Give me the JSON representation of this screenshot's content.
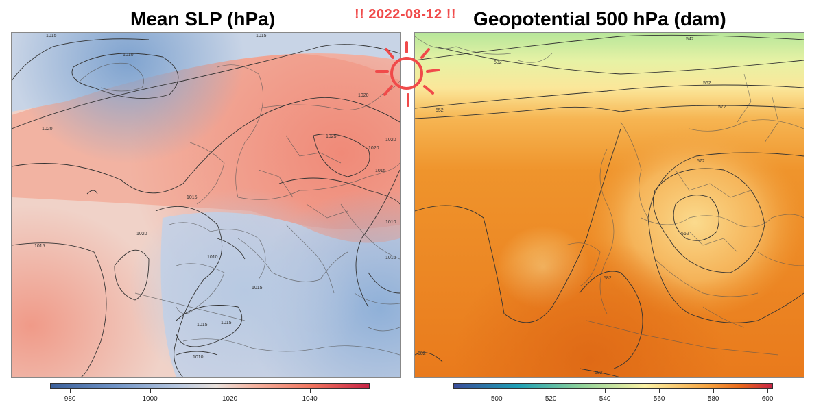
{
  "date_badge": "!! 2022-08-12 !!",
  "left_map": {
    "title": "Mean SLP (hPa)",
    "contour_labels": [
      "1015",
      "1010",
      "1015",
      "1020",
      "1020",
      "1025",
      "1020",
      "1015",
      "1015",
      "1020",
      "1015",
      "1010",
      "1010",
      "1015",
      "1015",
      "1010",
      "1020",
      "1010",
      "1015"
    ],
    "colorbar": {
      "min": 975,
      "max": 1055,
      "ticks": [
        980,
        1000,
        1020,
        1040
      ]
    }
  },
  "right_map": {
    "title": "Geopotential 500 hPa (dam)",
    "contour_labels": [
      "542",
      "532",
      "562",
      "552",
      "572",
      "572",
      "562",
      "582",
      "582",
      "582"
    ],
    "colorbar": {
      "min": 484,
      "max": 602,
      "ticks": [
        500,
        520,
        540,
        560,
        580,
        600
      ]
    }
  },
  "colors": {
    "accent_red": "#f04a4a"
  },
  "icons": {
    "sun": "sun-icon"
  }
}
